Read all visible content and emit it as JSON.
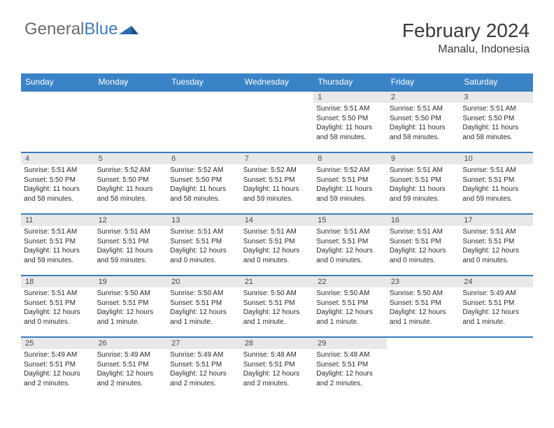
{
  "branding": {
    "logo_text_1": "General",
    "logo_text_2": "Blue",
    "logo_color_gray": "#6a6a6a",
    "logo_color_blue": "#3b7bbf"
  },
  "header": {
    "month_year": "February 2024",
    "location": "Manalu, Indonesia"
  },
  "colors": {
    "header_bg": "#3b83c7",
    "header_text": "#ffffff",
    "row_border": "#3b7bbf",
    "daynum_bg": "#e8e8e8",
    "daynum_text": "#4a4a4a",
    "body_text": "#2a2a2a",
    "page_bg": "#ffffff"
  },
  "typography": {
    "title_fontsize": 28,
    "location_fontsize": 16,
    "header_fontsize": 12,
    "daynum_fontsize": 11,
    "body_fontsize": 10,
    "font_family": "Arial"
  },
  "calendar": {
    "day_headers": [
      "Sunday",
      "Monday",
      "Tuesday",
      "Wednesday",
      "Thursday",
      "Friday",
      "Saturday"
    ],
    "weeks": [
      [
        null,
        null,
        null,
        null,
        {
          "n": "1",
          "sunrise": "Sunrise: 5:51 AM",
          "sunset": "Sunset: 5:50 PM",
          "dl1": "Daylight: 11 hours",
          "dl2": "and 58 minutes."
        },
        {
          "n": "2",
          "sunrise": "Sunrise: 5:51 AM",
          "sunset": "Sunset: 5:50 PM",
          "dl1": "Daylight: 11 hours",
          "dl2": "and 58 minutes."
        },
        {
          "n": "3",
          "sunrise": "Sunrise: 5:51 AM",
          "sunset": "Sunset: 5:50 PM",
          "dl1": "Daylight: 11 hours",
          "dl2": "and 58 minutes."
        }
      ],
      [
        {
          "n": "4",
          "sunrise": "Sunrise: 5:51 AM",
          "sunset": "Sunset: 5:50 PM",
          "dl1": "Daylight: 11 hours",
          "dl2": "and 58 minutes."
        },
        {
          "n": "5",
          "sunrise": "Sunrise: 5:52 AM",
          "sunset": "Sunset: 5:50 PM",
          "dl1": "Daylight: 11 hours",
          "dl2": "and 58 minutes."
        },
        {
          "n": "6",
          "sunrise": "Sunrise: 5:52 AM",
          "sunset": "Sunset: 5:50 PM",
          "dl1": "Daylight: 11 hours",
          "dl2": "and 58 minutes."
        },
        {
          "n": "7",
          "sunrise": "Sunrise: 5:52 AM",
          "sunset": "Sunset: 5:51 PM",
          "dl1": "Daylight: 11 hours",
          "dl2": "and 59 minutes."
        },
        {
          "n": "8",
          "sunrise": "Sunrise: 5:52 AM",
          "sunset": "Sunset: 5:51 PM",
          "dl1": "Daylight: 11 hours",
          "dl2": "and 59 minutes."
        },
        {
          "n": "9",
          "sunrise": "Sunrise: 5:51 AM",
          "sunset": "Sunset: 5:51 PM",
          "dl1": "Daylight: 11 hours",
          "dl2": "and 59 minutes."
        },
        {
          "n": "10",
          "sunrise": "Sunrise: 5:51 AM",
          "sunset": "Sunset: 5:51 PM",
          "dl1": "Daylight: 11 hours",
          "dl2": "and 59 minutes."
        }
      ],
      [
        {
          "n": "11",
          "sunrise": "Sunrise: 5:51 AM",
          "sunset": "Sunset: 5:51 PM",
          "dl1": "Daylight: 11 hours",
          "dl2": "and 59 minutes."
        },
        {
          "n": "12",
          "sunrise": "Sunrise: 5:51 AM",
          "sunset": "Sunset: 5:51 PM",
          "dl1": "Daylight: 11 hours",
          "dl2": "and 59 minutes."
        },
        {
          "n": "13",
          "sunrise": "Sunrise: 5:51 AM",
          "sunset": "Sunset: 5:51 PM",
          "dl1": "Daylight: 12 hours",
          "dl2": "and 0 minutes."
        },
        {
          "n": "14",
          "sunrise": "Sunrise: 5:51 AM",
          "sunset": "Sunset: 5:51 PM",
          "dl1": "Daylight: 12 hours",
          "dl2": "and 0 minutes."
        },
        {
          "n": "15",
          "sunrise": "Sunrise: 5:51 AM",
          "sunset": "Sunset: 5:51 PM",
          "dl1": "Daylight: 12 hours",
          "dl2": "and 0 minutes."
        },
        {
          "n": "16",
          "sunrise": "Sunrise: 5:51 AM",
          "sunset": "Sunset: 5:51 PM",
          "dl1": "Daylight: 12 hours",
          "dl2": "and 0 minutes."
        },
        {
          "n": "17",
          "sunrise": "Sunrise: 5:51 AM",
          "sunset": "Sunset: 5:51 PM",
          "dl1": "Daylight: 12 hours",
          "dl2": "and 0 minutes."
        }
      ],
      [
        {
          "n": "18",
          "sunrise": "Sunrise: 5:51 AM",
          "sunset": "Sunset: 5:51 PM",
          "dl1": "Daylight: 12 hours",
          "dl2": "and 0 minutes."
        },
        {
          "n": "19",
          "sunrise": "Sunrise: 5:50 AM",
          "sunset": "Sunset: 5:51 PM",
          "dl1": "Daylight: 12 hours",
          "dl2": "and 1 minute."
        },
        {
          "n": "20",
          "sunrise": "Sunrise: 5:50 AM",
          "sunset": "Sunset: 5:51 PM",
          "dl1": "Daylight: 12 hours",
          "dl2": "and 1 minute."
        },
        {
          "n": "21",
          "sunrise": "Sunrise: 5:50 AM",
          "sunset": "Sunset: 5:51 PM",
          "dl1": "Daylight: 12 hours",
          "dl2": "and 1 minute."
        },
        {
          "n": "22",
          "sunrise": "Sunrise: 5:50 AM",
          "sunset": "Sunset: 5:51 PM",
          "dl1": "Daylight: 12 hours",
          "dl2": "and 1 minute."
        },
        {
          "n": "23",
          "sunrise": "Sunrise: 5:50 AM",
          "sunset": "Sunset: 5:51 PM",
          "dl1": "Daylight: 12 hours",
          "dl2": "and 1 minute."
        },
        {
          "n": "24",
          "sunrise": "Sunrise: 5:49 AM",
          "sunset": "Sunset: 5:51 PM",
          "dl1": "Daylight: 12 hours",
          "dl2": "and 1 minute."
        }
      ],
      [
        {
          "n": "25",
          "sunrise": "Sunrise: 5:49 AM",
          "sunset": "Sunset: 5:51 PM",
          "dl1": "Daylight: 12 hours",
          "dl2": "and 2 minutes."
        },
        {
          "n": "26",
          "sunrise": "Sunrise: 5:49 AM",
          "sunset": "Sunset: 5:51 PM",
          "dl1": "Daylight: 12 hours",
          "dl2": "and 2 minutes."
        },
        {
          "n": "27",
          "sunrise": "Sunrise: 5:49 AM",
          "sunset": "Sunset: 5:51 PM",
          "dl1": "Daylight: 12 hours",
          "dl2": "and 2 minutes."
        },
        {
          "n": "28",
          "sunrise": "Sunrise: 5:48 AM",
          "sunset": "Sunset: 5:51 PM",
          "dl1": "Daylight: 12 hours",
          "dl2": "and 2 minutes."
        },
        {
          "n": "29",
          "sunrise": "Sunrise: 5:48 AM",
          "sunset": "Sunset: 5:51 PM",
          "dl1": "Daylight: 12 hours",
          "dl2": "and 2 minutes."
        },
        null,
        null
      ]
    ]
  }
}
